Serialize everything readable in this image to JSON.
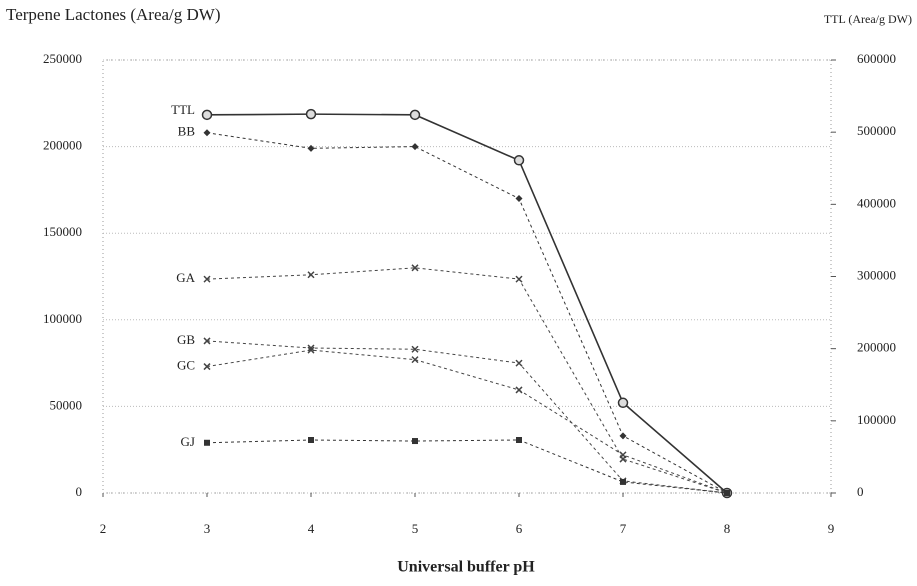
{
  "chart_data": {
    "type": "line",
    "title": "Terpene Lactones (Area/g DW)",
    "y2_label": "TTL (Area/g DW)",
    "x_label": "Universal buffer pH",
    "x": [
      3,
      4,
      5,
      6,
      7,
      8
    ],
    "xlim": [
      2,
      9
    ],
    "xticks": [
      2,
      3,
      4,
      5,
      6,
      7,
      8,
      9
    ],
    "ylim": [
      0,
      250000
    ],
    "yticks": [
      0,
      50000,
      100000,
      150000,
      200000,
      250000
    ],
    "y2lim": [
      0,
      600000
    ],
    "y2ticks": [
      0,
      100000,
      200000,
      300000,
      400000,
      500000,
      600000
    ],
    "grid": true,
    "series": [
      {
        "name": "TTL",
        "color": "#333333",
        "marker": "circle",
        "dashed": false,
        "axis": "y2",
        "values": [
          524000,
          525000,
          524000,
          461000,
          125000,
          0
        ]
      },
      {
        "name": "BB",
        "color": "#333333",
        "marker": "diamond",
        "dashed": true,
        "values": [
          208000,
          199000,
          200000,
          170000,
          33000,
          0
        ]
      },
      {
        "name": "GA",
        "color": "#444444",
        "marker": "cross",
        "dashed": true,
        "values": [
          123500,
          126000,
          130000,
          123500,
          19600,
          0
        ]
      },
      {
        "name": "GB",
        "color": "#444444",
        "marker": "cross",
        "dashed": true,
        "values": [
          87800,
          83700,
          83000,
          75000,
          7000,
          0
        ]
      },
      {
        "name": "GC",
        "color": "#444444",
        "marker": "cross",
        "dashed": true,
        "values": [
          73000,
          82500,
          77000,
          59500,
          22000,
          0
        ]
      },
      {
        "name": "GJ",
        "color": "#333333",
        "marker": "square",
        "dashed": true,
        "values": [
          29000,
          30600,
          30000,
          30600,
          6400,
          0
        ]
      }
    ]
  }
}
